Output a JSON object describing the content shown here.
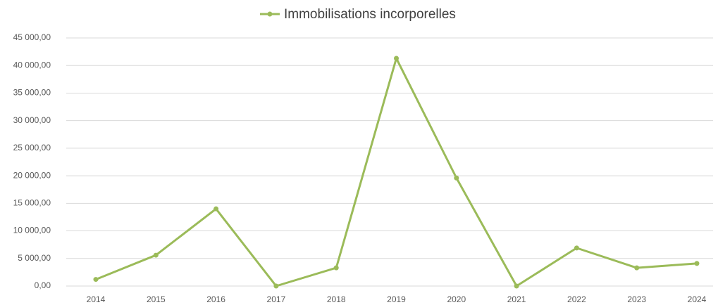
{
  "chart_data": {
    "type": "line",
    "categories": [
      "2014",
      "2015",
      "2016",
      "2017",
      "2018",
      "2019",
      "2020",
      "2021",
      "2022",
      "2023",
      "2024"
    ],
    "series": [
      {
        "name": "Immobilisations incorporelles",
        "color": "#9bbb59",
        "values": [
          1200,
          5600,
          14000,
          0,
          3300,
          41300,
          19600,
          0,
          6900,
          3300,
          4100
        ]
      }
    ],
    "ylim": [
      0,
      45000
    ],
    "yticks": [
      {
        "value": 0,
        "label": "0,00"
      },
      {
        "value": 5000,
        "label": "5 000,00"
      },
      {
        "value": 10000,
        "label": "10 000,00"
      },
      {
        "value": 15000,
        "label": "15 000,00"
      },
      {
        "value": 20000,
        "label": "20 000,00"
      },
      {
        "value": 25000,
        "label": "25 000,00"
      },
      {
        "value": 30000,
        "label": "30 000,00"
      },
      {
        "value": 35000,
        "label": "35 000,00"
      },
      {
        "value": 40000,
        "label": "40 000,00"
      },
      {
        "value": 45000,
        "label": "45 000,00"
      }
    ],
    "grid": true,
    "legend": "top"
  }
}
